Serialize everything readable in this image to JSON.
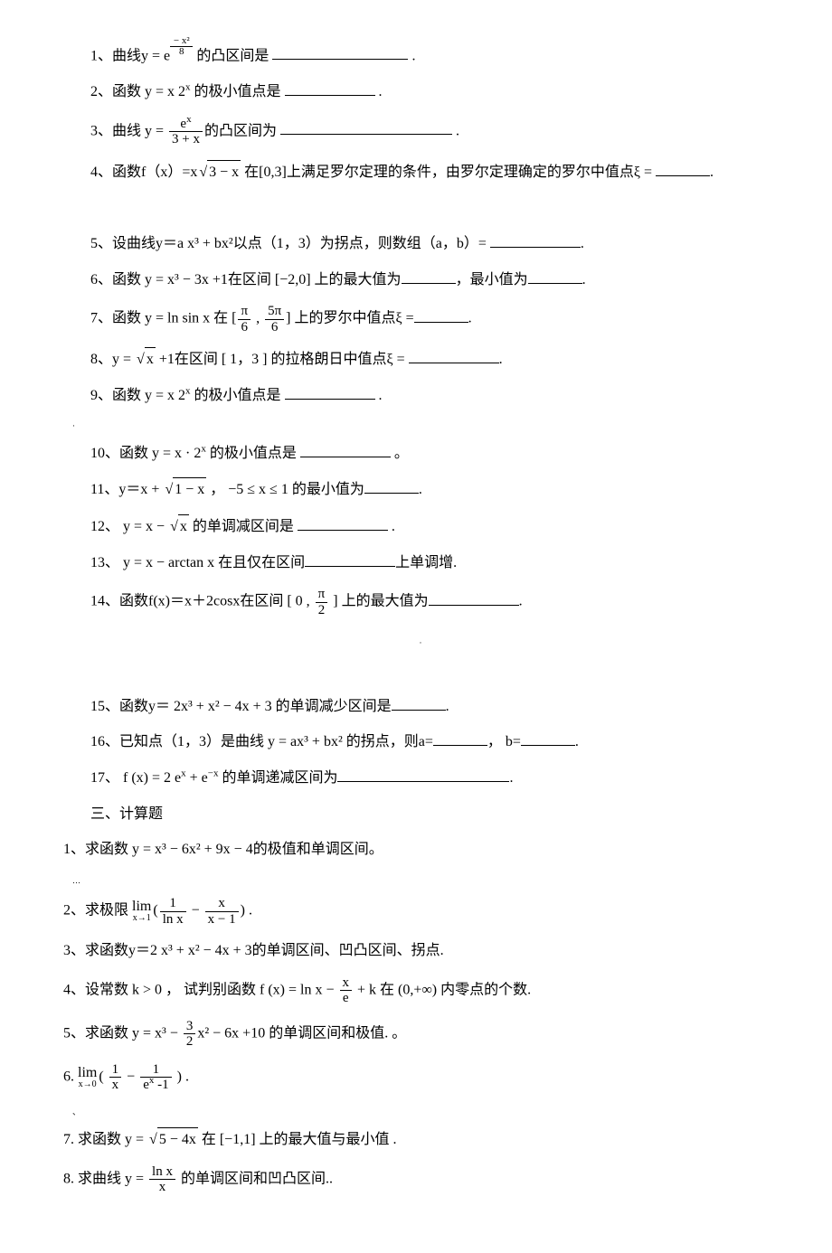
{
  "q1a": "1、曲线y = e",
  "q1b": " 的凸区间是 ",
  "period": " .",
  "q2a": "2、函数 y = x 2",
  "q2b": " 的极小值点是 ",
  "q3a": "3、曲线  y = ",
  "q3b": "的凸区间为 ",
  "q3num": "e",
  "q3den": "3 + x",
  "q4a": "4、函数f（x）=x",
  "q4rad": "3 − x",
  "q4b": " 在[0,3]上满足罗尔定理的条件，由罗尔定理确定的罗尔中值点ξ = ",
  "q4c": ".",
  "q5": "5、设曲线y＝a x³ + bx²以点（1，3）为拐点，则数组（a，b）= ",
  "q6a": "6、函数 y = x³ − 3x +1在区间 [−2,0] 上的最大值为",
  "q6b": "，最小值为",
  "q7a": "7、函数  y = ln sin x 在 [",
  "q7b": " , ",
  "q7c": "] 上的罗尔中值点ξ =",
  "q7n1": "π",
  "q7d1": "6",
  "q7n2": "5π",
  "q7d2": "6",
  "q8a": "8、y = ",
  "q8rad": "x",
  "q8b": "  +1在区间 [ 1，3 ] 的拉格朗日中值点ξ = ",
  "q9a": "9、函数 y = x 2",
  "q9b": " 的极小值点是 ",
  "q10a": "10、函数 y = x · 2",
  "q10b": " 的极小值点是 ",
  "q10c": " 。",
  "q11a": "11、y＝x + ",
  "q11rad": "1 − x",
  "q11b": "  ， −5 ≤ x ≤ 1 的最小值为",
  "q12a": "12、 y = x − ",
  "q12rad": "x",
  "q12b": "    的单调减区间是 ",
  "q13a": "13、 y = x − arctan x  在且仅在区间",
  "q13b": "上单调增.",
  "q14a": "14、函数f(x)＝x＋2cosx在区间 [ 0 , ",
  "q14n": "π",
  "q14d": "2",
  "q14b": " ] 上的最大值为",
  "q15": "15、函数y＝ 2x³ + x² − 4x + 3 的单调减少区间是",
  "q16a": "16、已知点（1，3）是曲线  y = ax³ + bx²  的拐点，则a=",
  "q16b": "， b=",
  "q17a": "17、 f (x) = 2 e",
  "q17b": " + e",
  "q17c": "  的单调递减区间为",
  "sec3": "三、计算题",
  "c1": "1、求函数 y = x³ − 6x² + 9x − 4的极值和单调区间。",
  "c2a": "2、求极限 ",
  "c2lim": "lim",
  "c2limsub": "x→1",
  "c2b": "(",
  "c2n1": "1",
  "c2d1": "ln x",
  "c2mid": " − ",
  "c2n2": "x",
  "c2d2": "x − 1",
  "c2c": ") .",
  "c3": "3、求函数y＝2 x³ + x² − 4x + 3的单调区间、凹凸区间、拐点.",
  "c4a": "4、设常数 k > 0 ，  试判别函数 f (x) = ln x − ",
  "c4n": "x",
  "c4d": "e",
  "c4b": " + k 在 (0,+∞) 内零点的个数.",
  "c5a": "5、求函数  y = x³ − ",
  "c5n": "3",
  "c5d": "2",
  "c5b": "x² − 6x +10  的单调区间和极值.  。",
  "c6a": "6.   ",
  "c6lim": "lim",
  "c6limsub": "x→0",
  "c6b": "( ",
  "c6n1": "1",
  "c6d1": "x",
  "c6mid": "  −  ",
  "c6n2": "1",
  "c6d2a": "e",
  "c6d2b": " -1",
  "c6c": " ) .",
  "c7a": "7.   求函数 y = ",
  "c7rad": "5 − 4x",
  "c7b": "  在 [−1,1] 上的最大值与最小值 .",
  "c8a": "8.   求曲线 y = ",
  "c8n": "ln x",
  "c8d": "x",
  "c8b": " 的单调区间和凹凸区间..",
  "minus": "−",
  "supx": "x",
  "supx2": "x²",
  "eight": "8",
  "supminusx": "−x",
  "marker": "·"
}
